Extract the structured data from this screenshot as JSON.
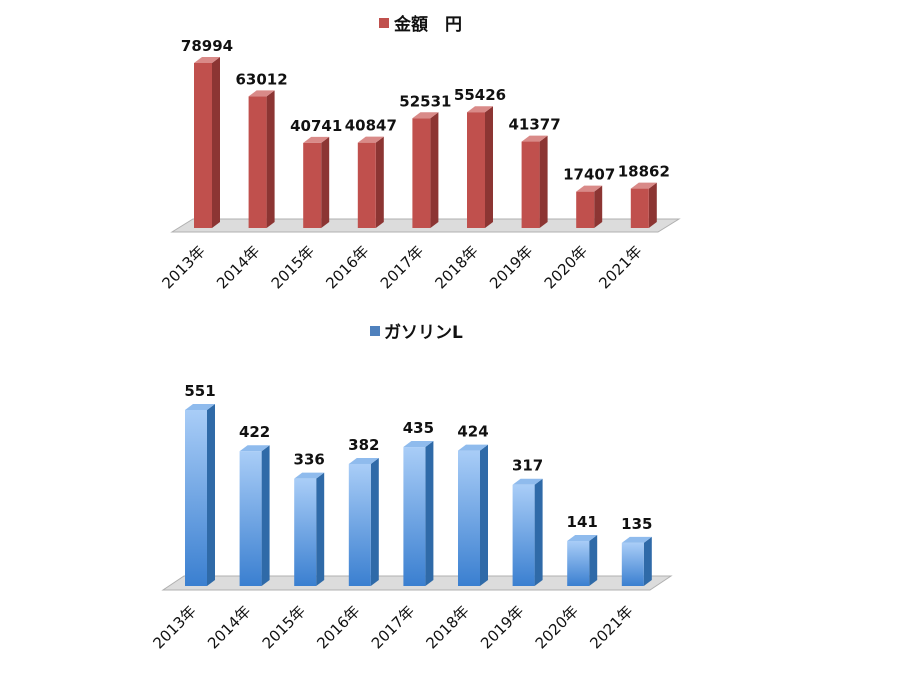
{
  "chart_data": [
    {
      "type": "bar",
      "categories": [
        "2013年",
        "2014年",
        "2015年",
        "2016年",
        "2017年",
        "2018年",
        "2019年",
        "2020年",
        "2021年"
      ],
      "series": [
        {
          "name": "金額　円",
          "values": [
            78994,
            63012,
            40741,
            40847,
            52531,
            55426,
            41377,
            17407,
            18862
          ]
        }
      ],
      "legend": "top",
      "grid": false,
      "color": "#c0504d"
    },
    {
      "type": "bar",
      "categories": [
        "2013年",
        "2014年",
        "2015年",
        "2016年",
        "2017年",
        "2018年",
        "2019年",
        "2020年",
        "2021年"
      ],
      "series": [
        {
          "name": "ガソリンL",
          "values": [
            551,
            422,
            336,
            382,
            435,
            424,
            317,
            141,
            135
          ]
        }
      ],
      "legend": "top",
      "grid": false,
      "color": "#4f81bd"
    }
  ]
}
